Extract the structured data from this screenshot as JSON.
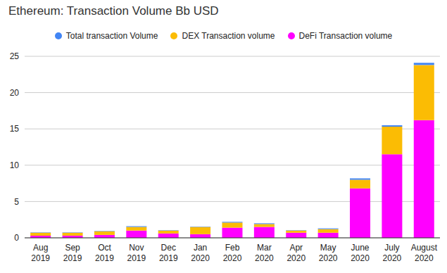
{
  "chart_data": {
    "type": "bar",
    "title": "Ethereum: Transaction Volume Bb USD",
    "categories": [
      "Aug 2019",
      "Sep 2019",
      "Oct 2019",
      "Nov 2019",
      "Dec 2019",
      "Jan 2020",
      "Feb 2020",
      "Mar 2020",
      "Apr 2020",
      "May 2020",
      "June 2020",
      "July 2020",
      "August 2020"
    ],
    "series": [
      {
        "name": "Total transaction Volume",
        "color": "#4285f4",
        "values": [
          0.05,
          0.05,
          0.05,
          0.1,
          0.05,
          0.05,
          0.1,
          0.1,
          0.05,
          0.1,
          0.2,
          0.2,
          0.3
        ]
      },
      {
        "name": "DEX Transaction volume",
        "color": "#fbbc04",
        "values": [
          0.4,
          0.4,
          0.5,
          0.5,
          0.4,
          1.0,
          0.7,
          0.4,
          0.3,
          0.5,
          1.2,
          3.8,
          7.6
        ]
      },
      {
        "name": "DeFi Transaction volume",
        "color": "#ff00ff",
        "values": [
          0.3,
          0.3,
          0.4,
          1.0,
          0.6,
          0.5,
          1.4,
          1.5,
          0.7,
          0.7,
          6.8,
          11.5,
          16.2
        ]
      }
    ],
    "ylim": [
      0,
      25
    ],
    "yticks": [
      0,
      5,
      10,
      15,
      20,
      25
    ],
    "grid": true,
    "stacked": true,
    "legend": "top"
  }
}
